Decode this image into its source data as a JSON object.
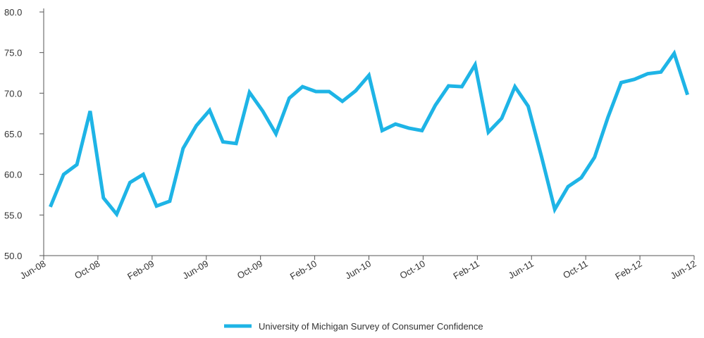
{
  "chart_data": {
    "type": "line",
    "xticks": [
      "Jun-08",
      "Oct-08",
      "Feb-09",
      "Jun-09",
      "Oct-09",
      "Feb-10",
      "Jun-10",
      "Oct-10",
      "Feb-11",
      "Jun-11",
      "Oct-11",
      "Feb-12",
      "Jun-12"
    ],
    "series": [
      {
        "name": "University of Michigan Survey of Consumer Confidence",
        "color": "#1eb4e6",
        "values": [
          56.0,
          60.0,
          61.2,
          67.8,
          57.1,
          55.1,
          59.0,
          60.0,
          56.1,
          56.7,
          63.2,
          66.0,
          67.9,
          64.0,
          63.8,
          70.1,
          67.8,
          65.0,
          69.4,
          70.8,
          70.2,
          70.2,
          69.0,
          70.3,
          72.2,
          65.4,
          66.2,
          65.7,
          65.4,
          68.5,
          70.9,
          70.8,
          73.5,
          65.2,
          66.9,
          70.8,
          68.4,
          62.2,
          55.7,
          58.5,
          59.6,
          62.1,
          67.0,
          71.3,
          71.7,
          72.4,
          72.6,
          74.9,
          69.8
        ]
      }
    ],
    "ylim": [
      50,
      80
    ],
    "yticks": [
      {
        "value": 50,
        "label": "50.0"
      },
      {
        "value": 55,
        "label": "55.0"
      },
      {
        "value": 60,
        "label": "60.0"
      },
      {
        "value": 65,
        "label": "65.0"
      },
      {
        "value": 70,
        "label": "70.0"
      },
      {
        "value": 75,
        "label": "75.0"
      },
      {
        "value": 80,
        "label": "80.0"
      }
    ],
    "legend": "bottom"
  }
}
